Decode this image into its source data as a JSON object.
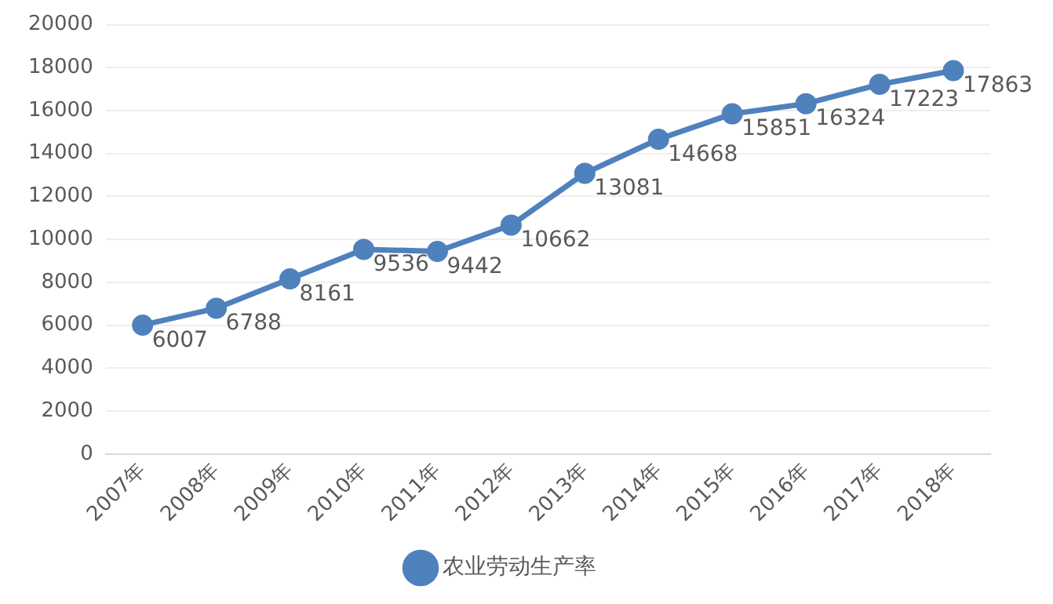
{
  "chart_data": {
    "type": "line",
    "categories": [
      "2007年",
      "2008年",
      "2009年",
      "2010年",
      "2011年",
      "2012年",
      "2013年",
      "2014年",
      "2015年",
      "2016年",
      "2017年",
      "2018年"
    ],
    "series": [
      {
        "name": "农业劳动生产率",
        "color": "#4f81bd",
        "values": [
          6007,
          6788,
          8161,
          9536,
          9442,
          10662,
          13081,
          14668,
          15851,
          16324,
          17223,
          17863
        ]
      }
    ],
    "ylim": [
      0,
      20000
    ],
    "yticks": [
      0,
      2000,
      4000,
      6000,
      8000,
      10000,
      12000,
      14000,
      16000,
      18000,
      20000
    ],
    "grid": "y",
    "legend": "bottom",
    "marker": "circle",
    "line_style": "solid",
    "data_labels": true
  }
}
